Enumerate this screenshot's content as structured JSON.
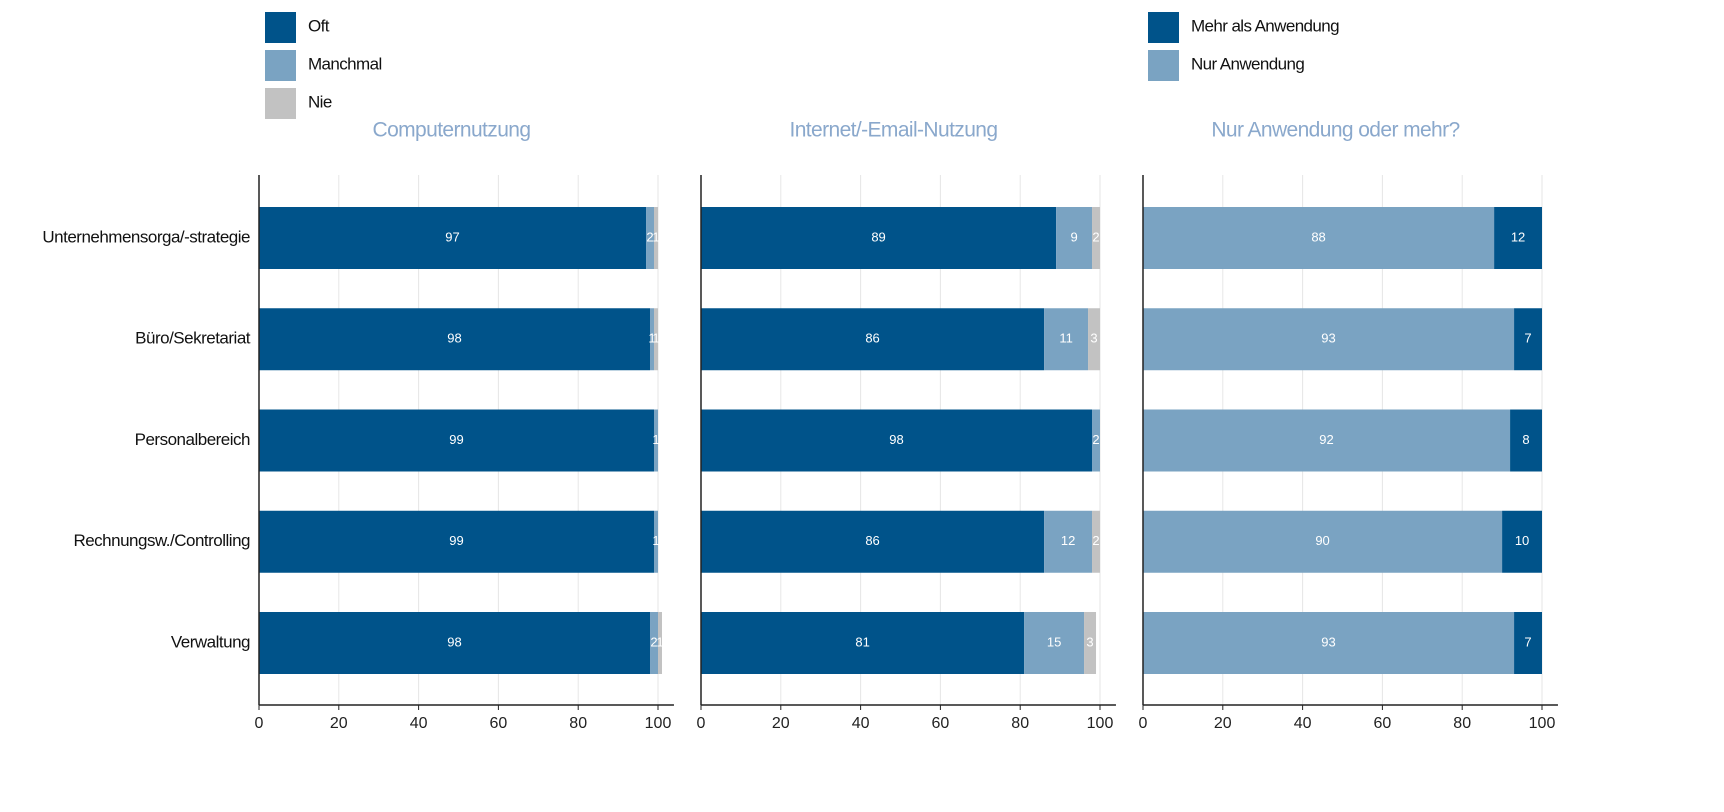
{
  "chart_data": [
    {
      "type": "bar",
      "orientation": "horizontal",
      "stacked": true,
      "title": "Computernutzung",
      "categories": [
        "Unternehmensorga/-strategie",
        "Büro/Sekretariat",
        "Personalbereich",
        "Rechnungsw./Controlling",
        "Verwaltung"
      ],
      "series": [
        {
          "name": "Oft",
          "color": "#00538a",
          "values": [
            97,
            98,
            99,
            99,
            98
          ]
        },
        {
          "name": "Manchmal",
          "color": "#7aa3c2",
          "values": [
            2,
            1,
            1,
            1,
            2
          ]
        },
        {
          "name": "Nie",
          "color": "#c2c2c2",
          "values": [
            1,
            1,
            0,
            0,
            1
          ]
        }
      ],
      "xlim": [
        0,
        104
      ],
      "xticks": [
        0,
        20,
        40,
        60,
        80,
        100
      ],
      "grid": true
    },
    {
      "type": "bar",
      "orientation": "horizontal",
      "stacked": true,
      "title": "Internet/-Email-Nutzung",
      "series": [
        {
          "name": "Oft",
          "color": "#00538a",
          "values": [
            89,
            86,
            98,
            86,
            81
          ]
        },
        {
          "name": "Manchmal",
          "color": "#7aa3c2",
          "values": [
            9,
            11,
            2,
            12,
            15
          ]
        },
        {
          "name": "Nie",
          "color": "#c2c2c2",
          "values": [
            2,
            3,
            0,
            2,
            3
          ]
        }
      ],
      "xlim": [
        0,
        104
      ],
      "xticks": [
        0,
        20,
        40,
        60,
        80,
        100
      ],
      "grid": true
    },
    {
      "type": "bar",
      "orientation": "horizontal",
      "stacked": true,
      "title": "Nur Anwendung oder mehr?",
      "series": [
        {
          "name": "Nur Anwendung",
          "color": "#7aa3c2",
          "values": [
            88,
            93,
            92,
            90,
            93
          ]
        },
        {
          "name": "Mehr als Anwendung",
          "color": "#00538a",
          "values": [
            12,
            7,
            8,
            10,
            7
          ]
        }
      ],
      "xlim": [
        0,
        104
      ],
      "xticks": [
        0,
        20,
        40,
        60,
        80,
        100
      ],
      "grid": true
    }
  ]
}
